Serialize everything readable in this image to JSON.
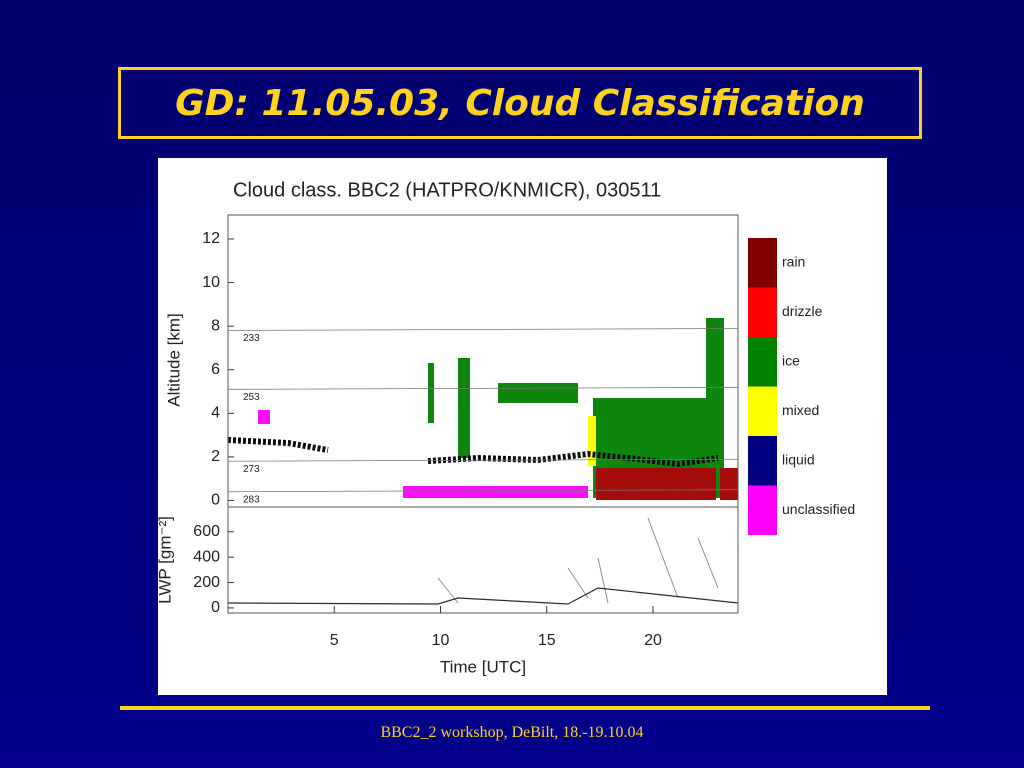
{
  "title": "GD: 11.05.03, Cloud Classification",
  "figure": {
    "title": "Cloud class. BBC2 (HATPRO/KNMICR), 030511",
    "altitude_axis": {
      "label": "Altitude [km]",
      "ylim": [
        -0.3,
        13.1
      ],
      "ticks": [
        0,
        2,
        4,
        6,
        8,
        10,
        12
      ]
    },
    "lwp_axis": {
      "label": "LWP [gm⁻²]",
      "ylim": [
        -40,
        795
      ],
      "ticks": [
        0,
        200,
        400,
        600
      ]
    },
    "time_axis": {
      "label": "Time [UTC]",
      "xlim": [
        0,
        24
      ],
      "ticks": [
        5,
        10,
        15,
        20
      ]
    },
    "isotherms": [
      {
        "label": "233",
        "altitude": 7.8
      },
      {
        "label": "253",
        "altitude": 5.1
      },
      {
        "label": "273",
        "altitude": 1.8
      },
      {
        "label": "283",
        "altitude": 0.4
      }
    ],
    "legend": [
      {
        "name": "rain",
        "color": "#800000"
      },
      {
        "name": "drizzle",
        "color": "#ff0000"
      },
      {
        "name": "ice",
        "color": "#008000"
      },
      {
        "name": "mixed",
        "color": "#ffff00"
      },
      {
        "name": "liquid",
        "color": "#000080"
      },
      {
        "name": "unclassified",
        "color": "#ff00ff"
      }
    ]
  },
  "footer": "BBC2_2 workshop, DeBilt, 18.-19.10.04"
}
